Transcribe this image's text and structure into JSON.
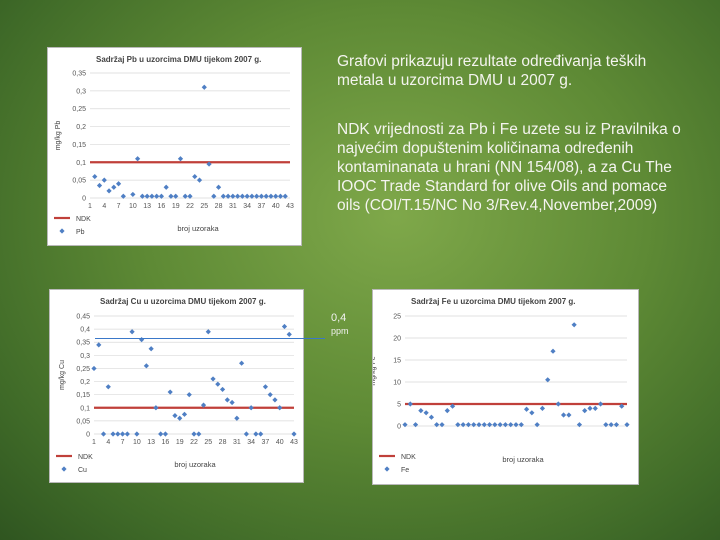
{
  "text": {
    "intro": "Grafovi prikazuju rezultate određivanja teških metala u uzorcima  DMU u 2007 g.",
    "ndk_note": "NDK vrijednosti za Pb i Fe uzete su iz Pravilnika o najvećim dopuštenim količinama određenih kontaminanata u hrani (NN 154/08), a za Cu The IOOC Trade Standard for olive Oils and pomace oils  (COI/T.15/NC No 3/Rev.4,November,2009)",
    "callout_value": "0,4",
    "callout_unit": "ppm"
  },
  "colors": {
    "ndk_line": "#c0403a",
    "points": "#4f7fc4",
    "grid": "#d9d9d9"
  },
  "chart_data": [
    {
      "id": "pb",
      "type": "scatter",
      "title": "Sadržaj Pb u uzorcima DMU tijekom 2007 g.",
      "xlabel": "broj uzoraka",
      "ylabel": "mg/kg Pb",
      "ylim": [
        0,
        0.35
      ],
      "yticks": [
        0,
        0.05,
        0.1,
        0.15,
        0.2,
        0.25,
        0.3,
        0.35
      ],
      "ytick_labels": [
        "0",
        "0,05",
        "0,1",
        "0,15",
        "0,2",
        "0,25",
        "0,3",
        "0,35"
      ],
      "xlim": [
        1,
        43
      ],
      "xticks": [
        1,
        4,
        7,
        10,
        13,
        16,
        19,
        22,
        25,
        28,
        31,
        34,
        37,
        40,
        43
      ],
      "x": [
        2,
        3,
        4,
        5,
        6,
        7,
        8,
        10,
        11,
        12,
        13,
        14,
        15,
        16,
        17,
        18,
        19,
        20,
        21,
        22,
        23,
        24,
        25,
        26,
        27,
        28,
        29,
        30,
        31,
        32,
        33,
        34,
        35,
        36,
        37,
        38,
        39,
        40,
        41,
        42
      ],
      "y": [
        0.06,
        0.035,
        0.05,
        0.02,
        0.03,
        0.04,
        0.005,
        0.01,
        0.11,
        0.005,
        0.005,
        0.005,
        0.005,
        0.005,
        0.03,
        0.005,
        0.005,
        0.11,
        0.005,
        0.005,
        0.06,
        0.05,
        0.31,
        0.095,
        0.005,
        0.03,
        0.005,
        0.005,
        0.005,
        0.005,
        0.005,
        0.005,
        0.005,
        0.005,
        0.005,
        0.005,
        0.005,
        0.005,
        0.005,
        0.005
      ],
      "ndk": 0.1,
      "legend": [
        "NDK",
        "Pb"
      ]
    },
    {
      "id": "cu",
      "type": "scatter",
      "title": "Sadržaj Cu u uzorcima DMU tijekom 2007 g.",
      "xlabel": "broj uzoraka",
      "ylabel": "mg/kg Cu",
      "ylim": [
        0,
        0.45
      ],
      "yticks": [
        0,
        0.05,
        0.1,
        0.15,
        0.2,
        0.25,
        0.3,
        0.35,
        0.4,
        0.45
      ],
      "ytick_labels": [
        "0",
        "0,05",
        "0,1",
        "0,15",
        "0,2",
        "0,25",
        "0,3",
        "0,35",
        "0,4",
        "0,45"
      ],
      "xlim": [
        1,
        43
      ],
      "xticks": [
        1,
        4,
        7,
        10,
        13,
        16,
        19,
        22,
        25,
        28,
        31,
        34,
        37,
        40,
        43
      ],
      "x": [
        1,
        2,
        3,
        4,
        5,
        6,
        7,
        8,
        9,
        10,
        11,
        12,
        13,
        14,
        15,
        16,
        17,
        18,
        19,
        20,
        21,
        22,
        23,
        24,
        25,
        26,
        27,
        28,
        29,
        30,
        31,
        32,
        33,
        34,
        35,
        36,
        37,
        38,
        39,
        40,
        41,
        42,
        43
      ],
      "y": [
        0.25,
        0.34,
        0.0,
        0.18,
        0.0,
        0.0,
        0.0,
        0.0,
        0.39,
        0.0,
        0.36,
        0.26,
        0.325,
        0.1,
        0.0,
        0.0,
        0.16,
        0.07,
        0.06,
        0.075,
        0.15,
        0.0,
        0.0,
        0.11,
        0.39,
        0.21,
        0.19,
        0.17,
        0.13,
        0.12,
        0.06,
        0.27,
        0.0,
        0.1,
        0.0,
        0.0,
        0.18,
        0.15,
        0.13,
        0.1,
        0.41,
        0.38,
        0.0
      ],
      "ndk": 0.1,
      "legend": [
        "NDK",
        "Cu"
      ]
    },
    {
      "id": "fe",
      "type": "scatter",
      "title": "Sadržaj Fe u uzorcima DMU tijekom 2007 g.",
      "xlabel": "broj uzoraka",
      "ylabel": "mg/kg Fe",
      "ylim": [
        0,
        25
      ],
      "yticks": [
        0,
        5,
        10,
        15,
        20,
        25
      ],
      "ytick_labels": [
        "0",
        "5",
        "10",
        "15",
        "20",
        "25"
      ],
      "xlim": [
        1,
        43
      ],
      "xticks": [],
      "x": [
        1,
        2,
        3,
        4,
        5,
        6,
        7,
        8,
        9,
        10,
        11,
        12,
        13,
        14,
        15,
        16,
        17,
        18,
        19,
        20,
        21,
        22,
        23,
        24,
        25,
        26,
        27,
        28,
        29,
        30,
        31,
        32,
        33,
        34,
        35,
        36,
        37,
        38,
        39,
        40,
        41,
        42,
        43
      ],
      "y": [
        0.3,
        5.0,
        0.3,
        3.5,
        3.0,
        2.0,
        0.3,
        0.3,
        3.5,
        4.5,
        0.3,
        0.3,
        0.3,
        0.3,
        0.3,
        0.3,
        0.3,
        0.3,
        0.3,
        0.3,
        0.3,
        0.3,
        0.3,
        3.8,
        3.0,
        0.3,
        4.0,
        10.5,
        17.0,
        5.0,
        2.5,
        2.5,
        23.0,
        0.3,
        3.5,
        4.0,
        4.0,
        5.0,
        0.3,
        0.3,
        0.3,
        4.5,
        0.3
      ],
      "ndk": 5,
      "legend": [
        "NDK",
        "Fe"
      ]
    }
  ]
}
